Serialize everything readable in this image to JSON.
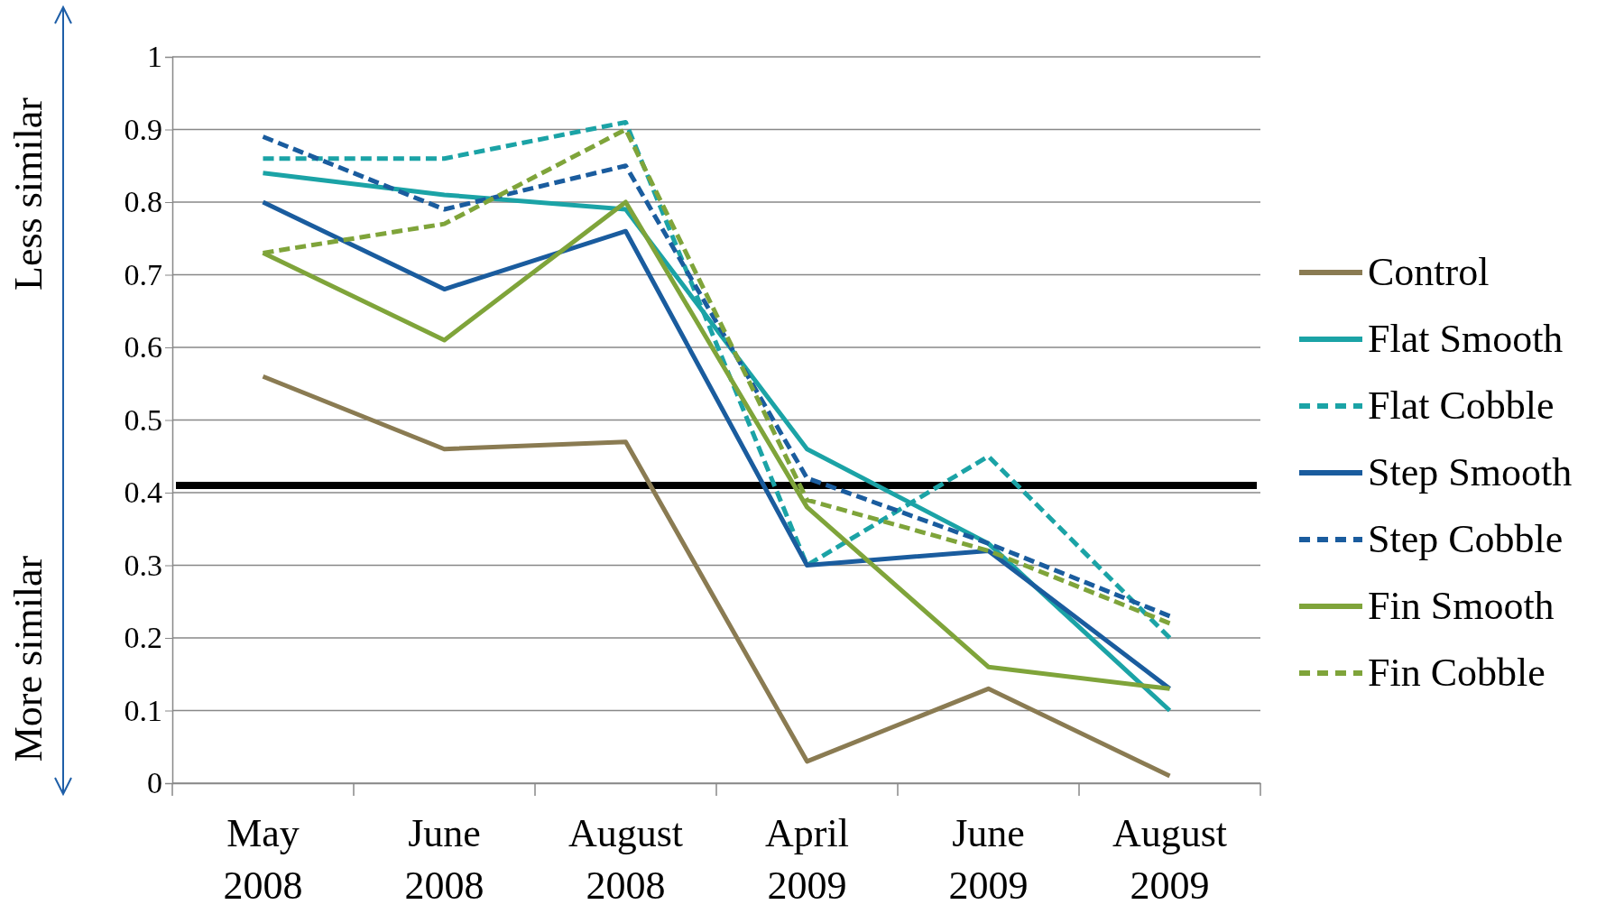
{
  "chart_data": {
    "type": "line",
    "categories": [
      "May 2008",
      "June 2008",
      "August 2008",
      "April 2009",
      "June 2009",
      "August 2009"
    ],
    "ylim": [
      0,
      1
    ],
    "yticks": [
      0,
      0.1,
      0.2,
      0.3,
      0.4,
      0.5,
      0.6,
      0.7,
      0.8,
      0.9,
      1
    ],
    "grid": "y",
    "legend": "right",
    "marker": "none",
    "annotations": [
      "Less similar",
      "More similar"
    ],
    "ref_lines": [
      {
        "axis": "y",
        "value": 0.41,
        "color": "#000000"
      }
    ],
    "series": [
      {
        "name": "Control",
        "color": "#8a7b52",
        "line_style": "solid",
        "values": [
          0.56,
          0.46,
          0.47,
          0.03,
          0.13,
          0.01
        ]
      },
      {
        "name": "Flat Smooth",
        "color": "#1ba3a6",
        "line_style": "solid",
        "values": [
          0.84,
          0.81,
          0.79,
          0.46,
          0.33,
          0.1
        ]
      },
      {
        "name": "Flat Cobble",
        "color": "#1ba3a6",
        "line_style": "dashed",
        "values": [
          0.86,
          0.86,
          0.91,
          0.3,
          0.45,
          0.2
        ]
      },
      {
        "name": "Step Smooth",
        "color": "#1a5c9e",
        "line_style": "solid",
        "values": [
          0.8,
          0.68,
          0.76,
          0.3,
          0.32,
          0.13
        ]
      },
      {
        "name": "Step Cobble",
        "color": "#1a5c9e",
        "line_style": "dashed",
        "values": [
          0.89,
          0.79,
          0.85,
          0.42,
          0.33,
          0.23
        ]
      },
      {
        "name": "Fin Smooth",
        "color": "#7fa43a",
        "line_style": "solid",
        "values": [
          0.73,
          0.61,
          0.8,
          0.38,
          0.16,
          0.13
        ]
      },
      {
        "name": "Fin Cobble",
        "color": "#7fa43a",
        "line_style": "dashed",
        "values": [
          0.73,
          0.77,
          0.9,
          0.39,
          0.32,
          0.22
        ]
      }
    ]
  }
}
